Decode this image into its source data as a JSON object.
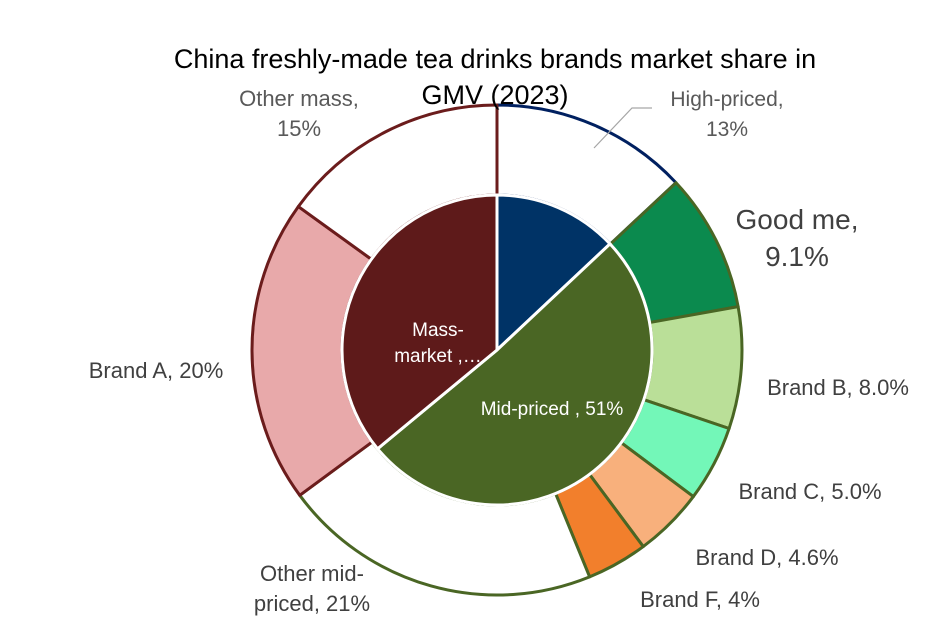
{
  "chart_data": {
    "type": "pie",
    "subtype": "sunburst",
    "title": "China freshly-made tea drinks brands market share in GMV (2023)",
    "title_lines": [
      "China freshly-made tea drinks brands market share in",
      "GMV (2023)"
    ],
    "inner_ring": [
      {
        "name": "High-priced",
        "value": 13,
        "color": "#003366"
      },
      {
        "name": "Mid-priced",
        "value": 51,
        "color": "#4a6624"
      },
      {
        "name": "Mass-market",
        "value": 36,
        "color": "#5e1a1a"
      }
    ],
    "outer_ring": [
      {
        "name": "High-priced",
        "value": 13,
        "parent": "High-priced",
        "color": "#ffffff",
        "border": "#002060"
      },
      {
        "name": "Good me",
        "value": 9.1,
        "parent": "Mid-priced",
        "color": "#0b8a4e",
        "border": "#4a6624"
      },
      {
        "name": "Brand B",
        "value": 8.0,
        "parent": "Mid-priced",
        "color": "#badf98",
        "border": "#4a6624"
      },
      {
        "name": "Brand C",
        "value": 5.0,
        "parent": "Mid-priced",
        "color": "#73f7b8",
        "border": "#4a6624"
      },
      {
        "name": "Brand D",
        "value": 4.6,
        "parent": "Mid-priced",
        "color": "#f8b07c",
        "border": "#4a6624"
      },
      {
        "name": "Brand F",
        "value": 4,
        "parent": "Mid-priced",
        "color": "#f27f2c",
        "border": "#4a6624"
      },
      {
        "name": "Other mid-priced",
        "value": 21,
        "parent": "Mid-priced",
        "color": "#ffffff",
        "border": "#4a6624"
      },
      {
        "name": "Brand A",
        "value": 20,
        "parent": "Mass-market",
        "color": "#e8a9aa",
        "border": "#6b1c1c"
      },
      {
        "name": "Other mass",
        "value": 15,
        "parent": "Mass-market",
        "color": "#ffffff",
        "border": "#6b1c1c"
      }
    ],
    "labels": {
      "inner_mass": [
        "Mass-",
        "market ,…"
      ],
      "inner_mid": "Mid-priced , 51%",
      "high_priced": [
        "High-priced,",
        "13%"
      ],
      "good_me": [
        "Good me,",
        "9.1%"
      ],
      "brand_b": "Brand B, 8.0%",
      "brand_c": "Brand C, 5.0%",
      "brand_d": "Brand D, 4.6%",
      "brand_f": "Brand F, 4%",
      "other_mid": [
        "Other mid-",
        "priced, 21%"
      ],
      "brand_a": "Brand A, 20%",
      "other_mass": [
        "Other mass,",
        "15%"
      ]
    },
    "legend": "none"
  }
}
